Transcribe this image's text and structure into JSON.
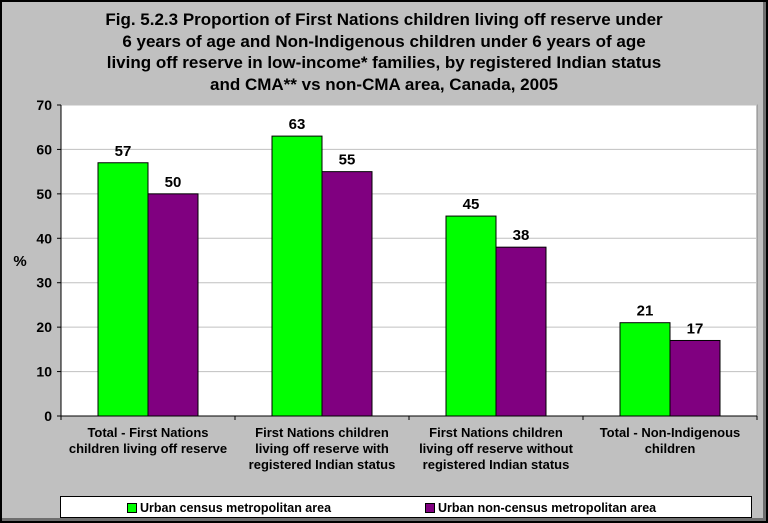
{
  "chart_data": {
    "type": "bar",
    "title": "Fig. 5.2.3 Proportion of First Nations children living off reserve under 6 years of age and Non-Indigenous children under 6 years of age living off reserve in low-income* families, by registered Indian status and CMA** vs non-CMA area, Canada, 2005",
    "title_lines": [
      "Fig. 5.2.3 Proportion of First Nations children living off reserve under",
      "6 years of age and Non-Indigenous children under 6 years of age",
      "living off reserve in low-income* families, by registered Indian status",
      "and CMA** vs non-CMA area, Canada, 2005"
    ],
    "ylabel": "%",
    "xlabel": "",
    "ylim": [
      0,
      70
    ],
    "yticks": [
      0,
      10,
      20,
      30,
      40,
      50,
      60,
      70
    ],
    "grid": true,
    "legend_position": "bottom",
    "categories": [
      [
        "Total - First Nations",
        "children living off reserve"
      ],
      [
        "First Nations children",
        "living off reserve with",
        "registered Indian status"
      ],
      [
        "First Nations children",
        "living off reserve without",
        "registered Indian status"
      ],
      [
        "Total - Non-Indigenous",
        "children"
      ]
    ],
    "series": [
      {
        "name": "Urban census metropolitan area",
        "color": "#00ff00",
        "values": [
          57,
          63,
          45,
          21
        ]
      },
      {
        "name": "Urban non-census metropolitan area",
        "color": "#800080",
        "values": [
          50,
          55,
          38,
          17
        ]
      }
    ]
  },
  "colors": {
    "background": "#c0c0c0",
    "plot_area": "#ffffff",
    "grid": "#c0c0c0"
  }
}
